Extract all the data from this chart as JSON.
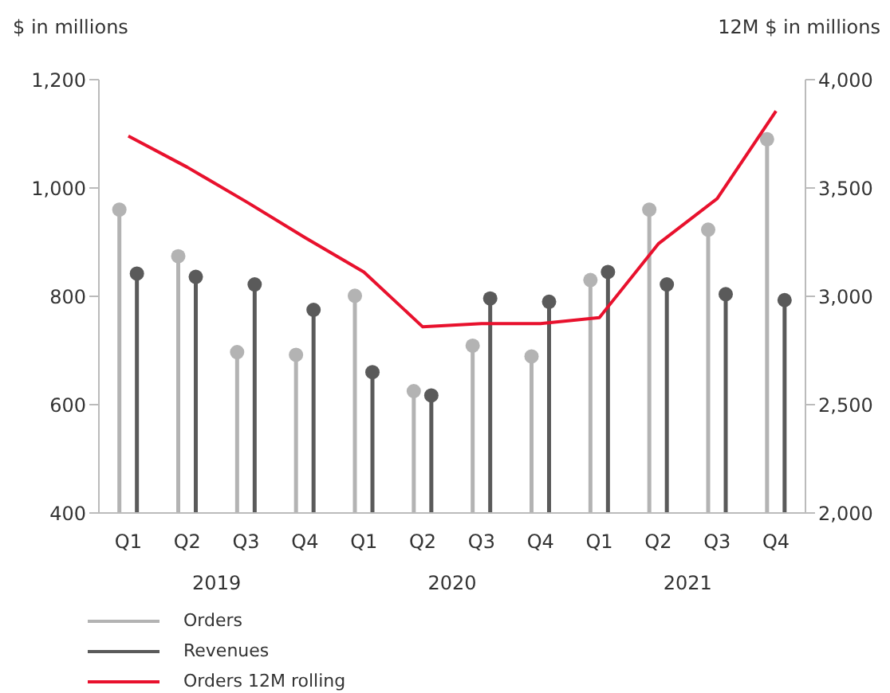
{
  "chart_data": {
    "type": "lollipop",
    "ylabel": "$ in millions",
    "y2label": "12M $ in millions",
    "categories": [
      "Q1",
      "Q2",
      "Q3",
      "Q4",
      "Q1",
      "Q2",
      "Q3",
      "Q4",
      "Q1",
      "Q2",
      "Q3",
      "Q4"
    ],
    "annotations": [
      "2019",
      "2020",
      "2021"
    ],
    "series": [
      {
        "name": "Orders",
        "color": "#b3b3b3",
        "values": [
          960,
          874,
          697,
          692,
          801,
          625,
          709,
          689,
          830,
          960,
          923,
          1090
        ]
      },
      {
        "name": "Revenues",
        "color": "#5a5a5a",
        "values": [
          842,
          836,
          822,
          775,
          660,
          617,
          796,
          790,
          845,
          822,
          804,
          793
        ]
      },
      {
        "name": "Orders 12M rolling",
        "type": "line",
        "axis": "y2",
        "color": "#e8112d",
        "marker": "none",
        "values": [
          3740,
          3596,
          3437,
          3271,
          3112,
          2859,
          2874,
          2874,
          2902,
          3242,
          3451,
          3855
        ]
      }
    ],
    "marker": "circle",
    "ylim": [
      400,
      1200
    ],
    "yticks": [
      400,
      600,
      800,
      {
        "value": 1000,
        "label": "1,000"
      },
      {
        "value": 1200,
        "label": "1,200"
      }
    ],
    "y2lim": [
      2000,
      4000
    ],
    "y2ticks": [
      {
        "value": 2000,
        "label": "2,000"
      },
      {
        "value": 2500,
        "label": "2,500"
      },
      {
        "value": 3000,
        "label": "3,000"
      },
      {
        "value": 3500,
        "label": "3,500"
      },
      {
        "value": 4000,
        "label": "4,000"
      }
    ],
    "legend": "bottom left"
  }
}
